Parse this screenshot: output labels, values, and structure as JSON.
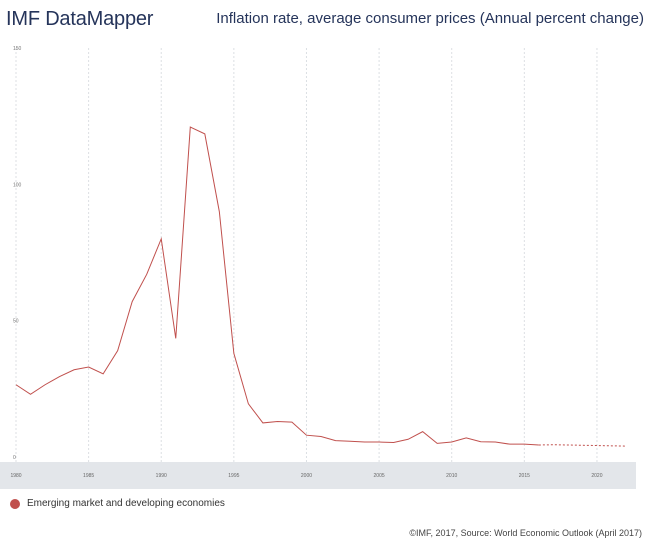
{
  "header": {
    "app_title": "IMF DataMapper",
    "chart_title": "Inflation rate, average consumer prices (Annual percent change)"
  },
  "legend": {
    "label": "Emerging market and developing economies",
    "color": "#c0504d"
  },
  "footer": {
    "credit": "©IMF, 2017, Source: World Economic Outlook (April 2017)"
  },
  "chart_data": {
    "type": "line",
    "title": "Inflation rate, average consumer prices (Annual percent change)",
    "xlabel": "",
    "ylabel": "",
    "xlim": [
      1980,
      2022
    ],
    "ylim": [
      0,
      150
    ],
    "yticks": [
      0,
      50,
      100,
      150
    ],
    "xticks": [
      1980,
      1985,
      1990,
      1995,
      2000,
      2005,
      2010,
      2015,
      2020
    ],
    "grid": "vertical",
    "series": [
      {
        "name": "Emerging market and developing economies",
        "color": "#c0504d",
        "x": [
          1980,
          1981,
          1982,
          1983,
          1984,
          1985,
          1986,
          1987,
          1988,
          1989,
          1990,
          1991,
          1992,
          1993,
          1994,
          1995,
          1996,
          1997,
          1998,
          1999,
          2000,
          2001,
          2002,
          2003,
          2004,
          2005,
          2006,
          2007,
          2008,
          2009,
          2010,
          2011,
          2012,
          2013,
          2014,
          2015,
          2016
        ],
        "values": [
          26.5,
          23,
          26.5,
          29.5,
          32,
          33,
          30.5,
          39,
          57,
          67,
          80,
          43.5,
          121,
          118.5,
          90,
          38,
          19.5,
          12.5,
          13,
          12.8,
          8,
          7.5,
          6,
          5.8,
          5.5,
          5.5,
          5.3,
          6.5,
          9.3,
          5,
          5.5,
          7,
          5.6,
          5.5,
          4.7,
          4.7,
          4.4
        ]
      },
      {
        "name": "Emerging market and developing economies (projection)",
        "color": "#c0504d",
        "projection": true,
        "x": [
          2016,
          2017,
          2018,
          2019,
          2020,
          2021,
          2022
        ],
        "values": [
          4.4,
          4.5,
          4.4,
          4.3,
          4.2,
          4.1,
          4.0
        ]
      }
    ]
  }
}
